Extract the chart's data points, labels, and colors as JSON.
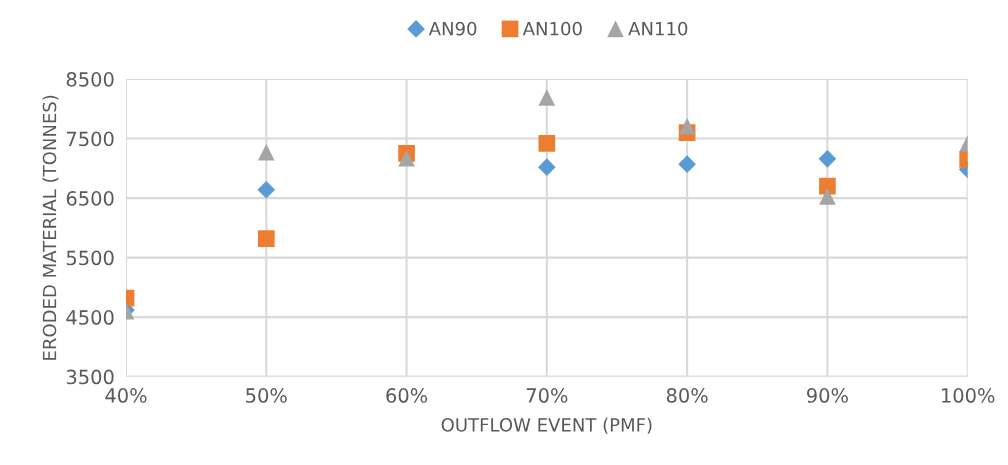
{
  "chart_data": {
    "type": "scatter",
    "xlabel": "OUTFLOW EVENT (PMF)",
    "ylabel": "ERODED MATERIAL (TONNES)",
    "x": [
      40,
      50,
      60,
      70,
      80,
      90,
      100
    ],
    "series": [
      {
        "name": "AN90",
        "color": "#5b9bd5",
        "marker": "diamond",
        "values": [
          4620,
          6640,
          null,
          7020,
          7070,
          7160,
          6980
        ]
      },
      {
        "name": "AN100",
        "color": "#ed7d31",
        "marker": "square",
        "values": [
          4820,
          5820,
          7250,
          7420,
          7600,
          6700,
          7150
        ]
      },
      {
        "name": "AN110",
        "color": "#a5a5a5",
        "marker": "triangle",
        "values": [
          4600,
          7270,
          7170,
          8190,
          7710,
          6530,
          7420
        ]
      }
    ],
    "xlim": [
      40,
      100
    ],
    "xticks": [
      {
        "value": 40,
        "label": "40%"
      },
      {
        "value": 50,
        "label": "50%"
      },
      {
        "value": 60,
        "label": "60%"
      },
      {
        "value": 70,
        "label": "70%"
      },
      {
        "value": 80,
        "label": "80%"
      },
      {
        "value": 90,
        "label": "90%"
      },
      {
        "value": 100,
        "label": "100%"
      }
    ],
    "ylim": [
      3500,
      8500
    ],
    "yticks": [
      3500,
      4500,
      5500,
      6500,
      7500,
      8500
    ],
    "grid": true,
    "legend": "top"
  }
}
